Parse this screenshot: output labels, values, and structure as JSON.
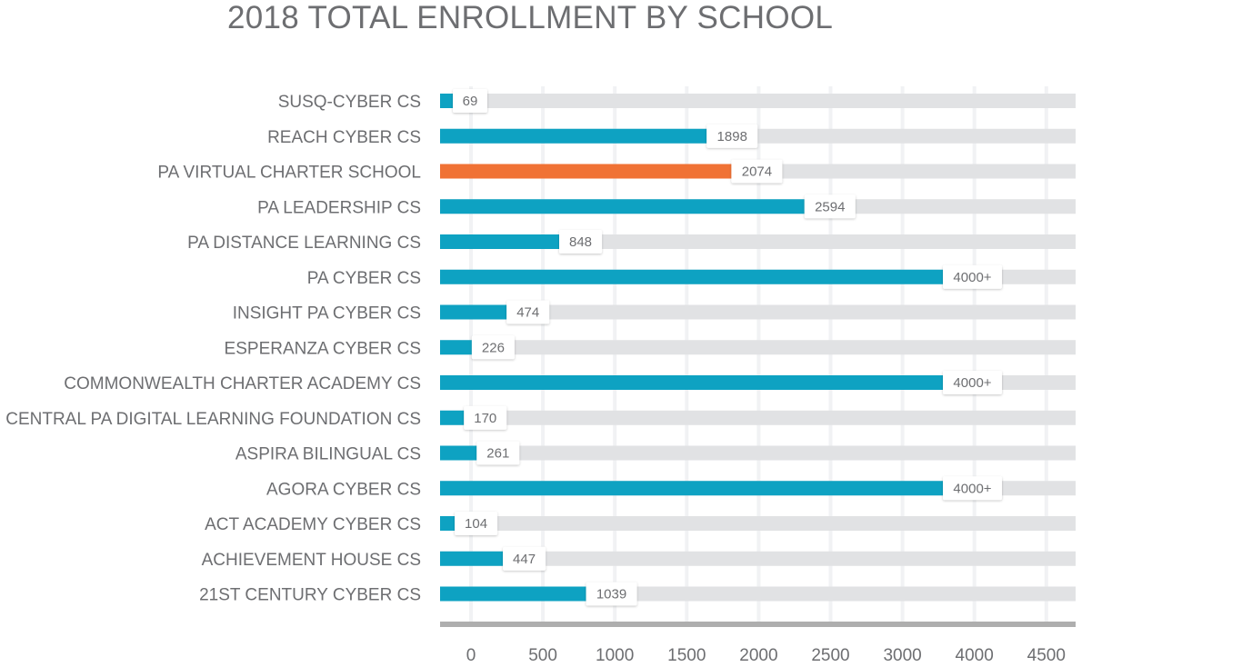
{
  "chart_data": {
    "type": "bar",
    "orientation": "horizontal",
    "title": "2018 TOTAL ENROLLMENT BY SCHOOL",
    "categories": [
      "SUSQ-CYBER CS",
      "REACH CYBER CS",
      "PA VIRTUAL CHARTER SCHOOL",
      "PA LEADERSHIP CS",
      "PA DISTANCE LEARNING CS",
      "PA CYBER CS",
      "INSIGHT PA CYBER CS",
      "ESPERANZA CYBER CS",
      "COMMONWEALTH CHARTER ACADEMY CS",
      "CENTRAL PA DIGITAL LEARNING FOUNDATION CS",
      "ASPIRA BILINGUAL CS",
      "AGORA CYBER CS",
      "ACT ACADEMY CYBER CS",
      "ACHIEVEMENT HOUSE CS",
      "21ST CENTURY CYBER CS"
    ],
    "values": [
      69,
      1898,
      2074,
      2594,
      848,
      4000,
      474,
      226,
      4000,
      170,
      261,
      4000,
      104,
      447,
      1039
    ],
    "data_labels": [
      "69",
      "1898",
      "2074",
      "2594",
      "848",
      "4000+",
      "474",
      "226",
      "4000+",
      "170",
      "261",
      "4000+",
      "104",
      "447",
      "1039"
    ],
    "highlight_index": 2,
    "x_ticks": [
      "0",
      "500",
      "1000",
      "1500",
      "2000",
      "2500",
      "3000",
      "4000",
      "4500"
    ],
    "xlim": [
      0,
      4500
    ],
    "grid": true,
    "colors": {
      "bar": "#0ea2c2",
      "highlight": "#f07235",
      "track": "#e1e2e4",
      "text": "#6d6e71",
      "axis": "#aeaeae",
      "grid": "#f1f2f4"
    }
  }
}
